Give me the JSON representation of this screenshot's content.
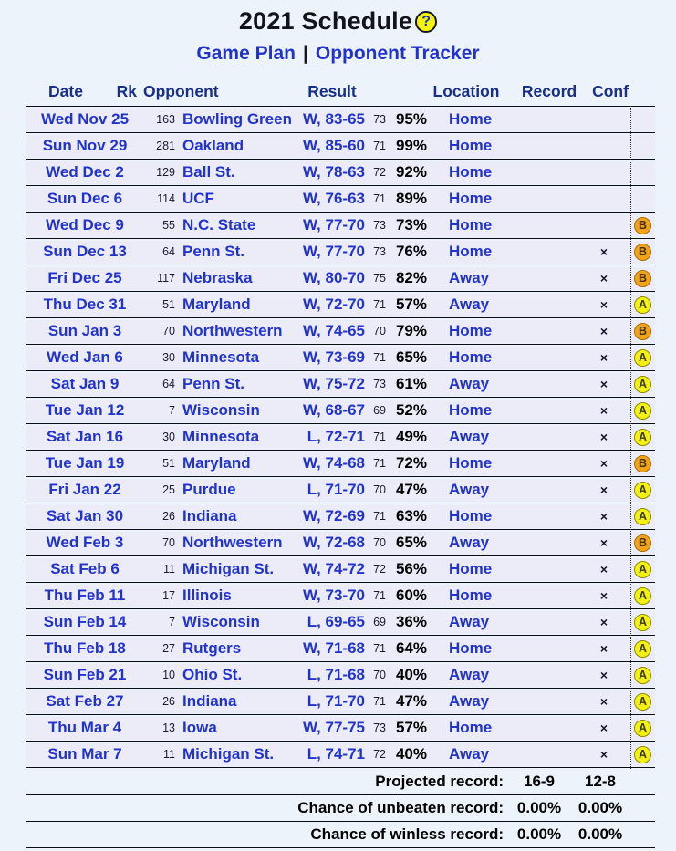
{
  "title": "2021 Schedule",
  "help_icon": "?",
  "nav": {
    "game_plan": "Game Plan",
    "separator": "|",
    "opponent_tracker": "Opponent Tracker"
  },
  "table": {
    "headers": {
      "date": "Date",
      "rk": "Rk",
      "opponent": "Opponent",
      "result": "Result",
      "location": "Location",
      "record": "Record",
      "conf": "Conf"
    },
    "rows": [
      {
        "date": "Wed Nov 25",
        "rk": "163",
        "opponent": "Bowling Green",
        "result": "W, 83-65",
        "tempo": "73",
        "win_prob": "95%",
        "location": "Home",
        "conf": "",
        "grade": ""
      },
      {
        "date": "Sun Nov 29",
        "rk": "281",
        "opponent": "Oakland",
        "result": "W, 85-60",
        "tempo": "71",
        "win_prob": "99%",
        "location": "Home",
        "conf": "",
        "grade": ""
      },
      {
        "date": "Wed Dec 2",
        "rk": "129",
        "opponent": "Ball St.",
        "result": "W, 78-63",
        "tempo": "72",
        "win_prob": "92%",
        "location": "Home",
        "conf": "",
        "grade": ""
      },
      {
        "date": "Sun Dec 6",
        "rk": "114",
        "opponent": "UCF",
        "result": "W, 76-63",
        "tempo": "71",
        "win_prob": "89%",
        "location": "Home",
        "conf": "",
        "grade": ""
      },
      {
        "date": "Wed Dec 9",
        "rk": "55",
        "opponent": "N.C. State",
        "result": "W, 77-70",
        "tempo": "73",
        "win_prob": "73%",
        "location": "Home",
        "conf": "",
        "grade": "B"
      },
      {
        "date": "Sun Dec 13",
        "rk": "64",
        "opponent": "Penn St.",
        "result": "W, 77-70",
        "tempo": "73",
        "win_prob": "76%",
        "location": "Home",
        "conf": "×",
        "grade": "B"
      },
      {
        "date": "Fri Dec 25",
        "rk": "117",
        "opponent": "Nebraska",
        "result": "W, 80-70",
        "tempo": "75",
        "win_prob": "82%",
        "location": "Away",
        "conf": "×",
        "grade": "B"
      },
      {
        "date": "Thu Dec 31",
        "rk": "51",
        "opponent": "Maryland",
        "result": "W, 72-70",
        "tempo": "71",
        "win_prob": "57%",
        "location": "Away",
        "conf": "×",
        "grade": "A"
      },
      {
        "date": "Sun Jan 3",
        "rk": "70",
        "opponent": "Northwestern",
        "result": "W, 74-65",
        "tempo": "70",
        "win_prob": "79%",
        "location": "Home",
        "conf": "×",
        "grade": "B"
      },
      {
        "date": "Wed Jan 6",
        "rk": "30",
        "opponent": "Minnesota",
        "result": "W, 73-69",
        "tempo": "71",
        "win_prob": "65%",
        "location": "Home",
        "conf": "×",
        "grade": "A"
      },
      {
        "date": "Sat Jan 9",
        "rk": "64",
        "opponent": "Penn St.",
        "result": "W, 75-72",
        "tempo": "73",
        "win_prob": "61%",
        "location": "Away",
        "conf": "×",
        "grade": "A"
      },
      {
        "date": "Tue Jan 12",
        "rk": "7",
        "opponent": "Wisconsin",
        "result": "W, 68-67",
        "tempo": "69",
        "win_prob": "52%",
        "location": "Home",
        "conf": "×",
        "grade": "A"
      },
      {
        "date": "Sat Jan 16",
        "rk": "30",
        "opponent": "Minnesota",
        "result": "L, 72-71",
        "tempo": "71",
        "win_prob": "49%",
        "location": "Away",
        "conf": "×",
        "grade": "A"
      },
      {
        "date": "Tue Jan 19",
        "rk": "51",
        "opponent": "Maryland",
        "result": "W, 74-68",
        "tempo": "71",
        "win_prob": "72%",
        "location": "Home",
        "conf": "×",
        "grade": "B"
      },
      {
        "date": "Fri Jan 22",
        "rk": "25",
        "opponent": "Purdue",
        "result": "L, 71-70",
        "tempo": "70",
        "win_prob": "47%",
        "location": "Away",
        "conf": "×",
        "grade": "A"
      },
      {
        "date": "Sat Jan 30",
        "rk": "26",
        "opponent": "Indiana",
        "result": "W, 72-69",
        "tempo": "71",
        "win_prob": "63%",
        "location": "Home",
        "conf": "×",
        "grade": "A"
      },
      {
        "date": "Wed Feb 3",
        "rk": "70",
        "opponent": "Northwestern",
        "result": "W, 72-68",
        "tempo": "70",
        "win_prob": "65%",
        "location": "Away",
        "conf": "×",
        "grade": "B"
      },
      {
        "date": "Sat Feb 6",
        "rk": "11",
        "opponent": "Michigan St.",
        "result": "W, 74-72",
        "tempo": "72",
        "win_prob": "56%",
        "location": "Home",
        "conf": "×",
        "grade": "A"
      },
      {
        "date": "Thu Feb 11",
        "rk": "17",
        "opponent": "Illinois",
        "result": "W, 73-70",
        "tempo": "71",
        "win_prob": "60%",
        "location": "Home",
        "conf": "×",
        "grade": "A"
      },
      {
        "date": "Sun Feb 14",
        "rk": "7",
        "opponent": "Wisconsin",
        "result": "L, 69-65",
        "tempo": "69",
        "win_prob": "36%",
        "location": "Away",
        "conf": "×",
        "grade": "A"
      },
      {
        "date": "Thu Feb 18",
        "rk": "27",
        "opponent": "Rutgers",
        "result": "W, 71-68",
        "tempo": "71",
        "win_prob": "64%",
        "location": "Home",
        "conf": "×",
        "grade": "A"
      },
      {
        "date": "Sun Feb 21",
        "rk": "10",
        "opponent": "Ohio St.",
        "result": "L, 71-68",
        "tempo": "70",
        "win_prob": "40%",
        "location": "Away",
        "conf": "×",
        "grade": "A"
      },
      {
        "date": "Sat Feb 27",
        "rk": "26",
        "opponent": "Indiana",
        "result": "L, 71-70",
        "tempo": "71",
        "win_prob": "47%",
        "location": "Away",
        "conf": "×",
        "grade": "A"
      },
      {
        "date": "Thu Mar 4",
        "rk": "13",
        "opponent": "Iowa",
        "result": "W, 77-75",
        "tempo": "73",
        "win_prob": "57%",
        "location": "Home",
        "conf": "×",
        "grade": "A"
      },
      {
        "date": "Sun Mar 7",
        "rk": "11",
        "opponent": "Michigan St.",
        "result": "L, 74-71",
        "tempo": "72",
        "win_prob": "40%",
        "location": "Away",
        "conf": "×",
        "grade": "A"
      }
    ]
  },
  "footer": {
    "projected": {
      "label": "Projected record:",
      "record": "16-9",
      "conf": "12-8"
    },
    "unbeaten": {
      "label": "Chance of unbeaten record:",
      "record": "0.00%",
      "conf": "0.00%"
    },
    "winless": {
      "label": "Chance of winless record:",
      "record": "0.00%",
      "conf": "0.00%"
    }
  },
  "colors": {
    "page_bg": "#ECF3FA",
    "row_bg": "#EBECF8",
    "link_blue": "#2233CC",
    "header_navy": "#182F86",
    "grade_a_bg": "#F4F112",
    "grade_b_bg": "#F0A318",
    "line": "#0B0B15"
  }
}
